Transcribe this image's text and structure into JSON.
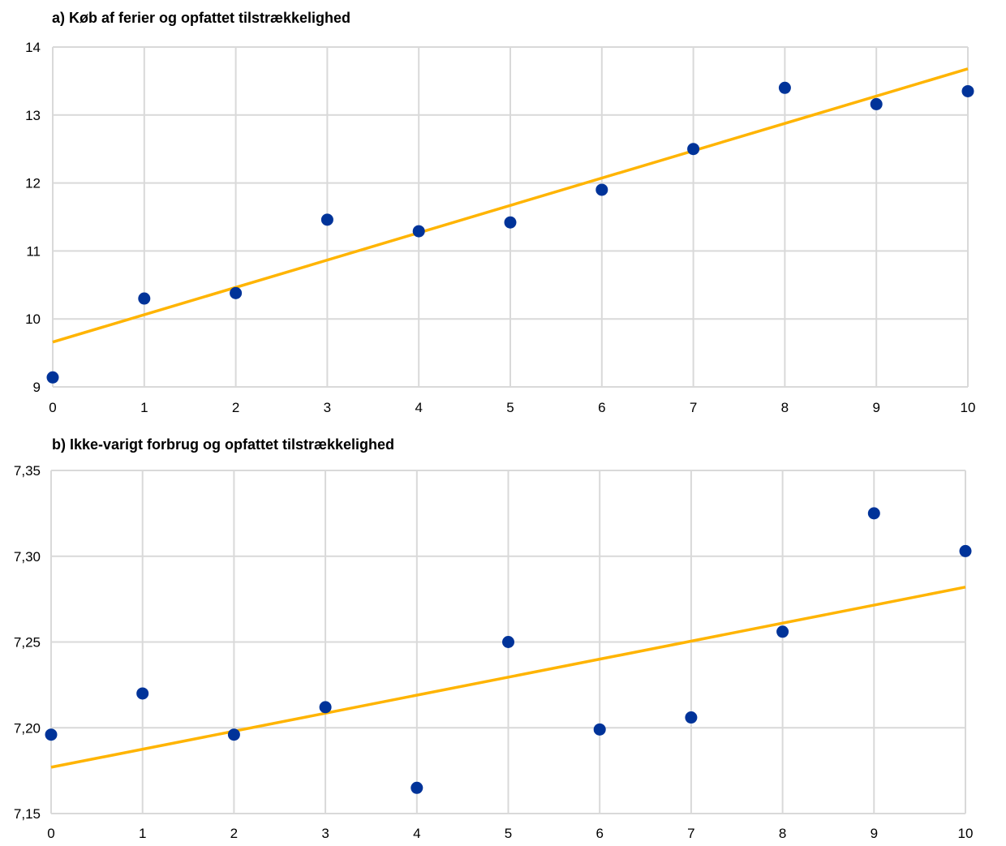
{
  "chart_data": [
    {
      "type": "scatter",
      "title": "a) Køb af ferier og opfattet tilstrækkelighed",
      "x_ticks": [
        "0",
        "1",
        "2",
        "3",
        "4",
        "5",
        "6",
        "7",
        "8",
        "9",
        "10"
      ],
      "y_ticks": [
        "9",
        "10",
        "11",
        "12",
        "13",
        "14"
      ],
      "ylim": [
        9,
        14
      ],
      "xlim": [
        0,
        10
      ],
      "grid": true,
      "series": [
        {
          "kind": "points",
          "color": "#003399",
          "x": [
            0,
            1,
            2,
            3,
            4,
            5,
            6,
            7,
            8,
            9,
            10
          ],
          "y": [
            9.14,
            10.3,
            10.38,
            11.46,
            11.29,
            11.42,
            11.9,
            12.5,
            13.4,
            13.16,
            13.35
          ]
        },
        {
          "kind": "trendline",
          "color": "#ffb400",
          "x": [
            0,
            10
          ],
          "y": [
            9.66,
            13.68
          ]
        }
      ]
    },
    {
      "type": "scatter",
      "title": "b) Ikke-varigt forbrug og opfattet tilstrækkelighed",
      "x_ticks": [
        "0",
        "1",
        "2",
        "3",
        "4",
        "5",
        "6",
        "7",
        "8",
        "9",
        "10"
      ],
      "y_ticks": [
        "7,15",
        "7,20",
        "7,25",
        "7,30",
        "7,35"
      ],
      "ylim": [
        7.15,
        7.35
      ],
      "xlim": [
        0,
        10
      ],
      "grid": true,
      "series": [
        {
          "kind": "points",
          "color": "#003399",
          "x": [
            0,
            1,
            2,
            3,
            4,
            5,
            6,
            7,
            8,
            9,
            10
          ],
          "y": [
            7.196,
            7.22,
            7.196,
            7.212,
            7.165,
            7.25,
            7.199,
            7.206,
            7.256,
            7.325,
            7.303
          ]
        },
        {
          "kind": "trendline",
          "color": "#ffb400",
          "x": [
            0,
            10
          ],
          "y": [
            7.177,
            7.282
          ]
        }
      ]
    }
  ]
}
